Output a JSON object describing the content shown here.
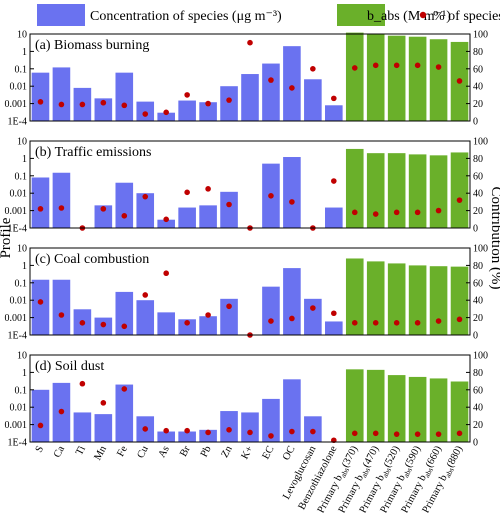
{
  "chart_data": {
    "type": "bar",
    "legend": {
      "placement": "top",
      "entries": [
        {
          "key": "conc",
          "label": "Concentration of species (μg m⁻³)",
          "color": "#6a72f0",
          "marker": "bar"
        },
        {
          "key": "babs",
          "label": "b_abs (M m⁻¹)",
          "color": "#6ab02a",
          "marker": "bar"
        },
        {
          "key": "pct",
          "label": "% of species",
          "color": "#c00000",
          "marker": "dot"
        }
      ]
    },
    "ylabel_left": "Profile",
    "ylabel_right": "Contribution (%)",
    "y_left": {
      "scale": "log",
      "range": [
        0.0001,
        10
      ],
      "ticks": [
        "1E-4",
        "0.001",
        "0.01",
        "0.1",
        "1",
        "10"
      ]
    },
    "y_right": {
      "scale": "linear",
      "range": [
        0,
        100
      ],
      "ticks": [
        "0",
        "20",
        "40",
        "60",
        "80",
        "100"
      ]
    },
    "categories": [
      {
        "label": "S",
        "type": "species"
      },
      {
        "label": "Ca",
        "type": "species"
      },
      {
        "label": "Ti",
        "type": "species"
      },
      {
        "label": "Mn",
        "type": "species"
      },
      {
        "label": "Fe",
        "type": "species"
      },
      {
        "label": "Cu",
        "type": "species"
      },
      {
        "label": "As",
        "type": "species"
      },
      {
        "label": "Br",
        "type": "species"
      },
      {
        "label": "Pb",
        "type": "species"
      },
      {
        "label": "Zn",
        "type": "species"
      },
      {
        "label": "K+",
        "type": "species"
      },
      {
        "label": "EC",
        "type": "species"
      },
      {
        "label": "OC",
        "type": "species"
      },
      {
        "label": "Levoglucosan",
        "type": "species"
      },
      {
        "label": "Benzothiazolone",
        "type": "species"
      },
      {
        "label": "Primary b_abs(370)",
        "type": "babs",
        "base": "Primary b",
        "sub": "abs",
        "suffix": "(370)"
      },
      {
        "label": "Primary b_abs(470)",
        "type": "babs",
        "base": "Primary b",
        "sub": "abs",
        "suffix": "(470)"
      },
      {
        "label": "Primary b_abs(520)",
        "type": "babs",
        "base": "Primary b",
        "sub": "abs",
        "suffix": "(520)"
      },
      {
        "label": "Primary b_abs(590)",
        "type": "babs",
        "base": "Primary b",
        "sub": "abs",
        "suffix": "(590)"
      },
      {
        "label": "Primary b_abs(660)",
        "type": "babs",
        "base": "Primary b",
        "sub": "abs",
        "suffix": "(660)"
      },
      {
        "label": "Primary b_abs(880)",
        "type": "babs",
        "base": "Primary b",
        "sub": "abs",
        "suffix": "(880)"
      }
    ],
    "panels": [
      {
        "title": "(a) Biomass burning",
        "profile": [
          0.06,
          0.12,
          0.008,
          0.002,
          0.06,
          0.0013,
          0.0003,
          0.0015,
          0.0012,
          0.01,
          0.05,
          0.2,
          2.0,
          0.025,
          0.0008,
          12,
          10,
          8,
          7,
          5,
          3.5
        ],
        "percent": [
          22,
          19,
          19,
          21,
          18,
          8,
          10,
          30,
          20,
          24,
          90,
          47,
          38,
          60,
          26,
          61,
          64,
          64,
          64,
          62,
          46
        ]
      },
      {
        "title": "(b) Traffic emissions",
        "profile": [
          0.08,
          0.15,
          0.0001,
          0.002,
          0.04,
          0.01,
          0.0003,
          0.0015,
          0.002,
          0.012,
          0.0001,
          0.5,
          1.2,
          0.0001,
          0.0015,
          3.5,
          2.0,
          2.0,
          1.7,
          1.5,
          2.2
        ],
        "percent": [
          22,
          23,
          0,
          22,
          14,
          36,
          10,
          41,
          45,
          27,
          0,
          37,
          30,
          0,
          54,
          18,
          16,
          18,
          18,
          20,
          32
        ]
      },
      {
        "title": "(c) Coal combustion",
        "profile": [
          0.15,
          0.15,
          0.003,
          0.001,
          0.03,
          0.01,
          0.002,
          0.0008,
          0.0012,
          0.012,
          0.0001,
          0.06,
          0.7,
          0.012,
          0.0006,
          2.5,
          1.7,
          1.3,
          1.0,
          0.9,
          0.85
        ],
        "percent": [
          38,
          23,
          14,
          12,
          10,
          46,
          71,
          14,
          23,
          33,
          0,
          16,
          19,
          31,
          25,
          14,
          14,
          14,
          14,
          16,
          18
        ]
      },
      {
        "title": "(d) Soil dust",
        "profile": [
          0.1,
          0.25,
          0.005,
          0.004,
          0.2,
          0.003,
          0.0004,
          0.0004,
          0.0005,
          0.006,
          0.005,
          0.03,
          0.4,
          0.003,
          0.0001,
          1.5,
          1.4,
          0.7,
          0.55,
          0.45,
          0.3
        ],
        "percent": [
          19,
          35,
          67,
          45,
          61,
          15,
          13,
          13,
          11,
          14,
          11,
          7,
          12,
          12,
          2,
          10,
          10,
          9,
          9,
          9,
          10
        ]
      }
    ]
  }
}
